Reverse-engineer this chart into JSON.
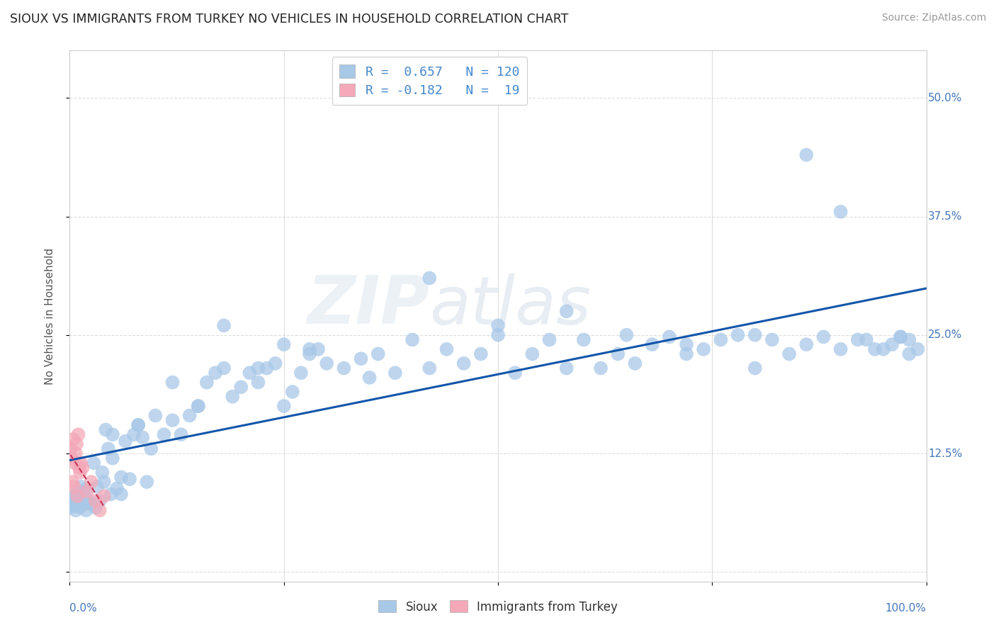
{
  "title": "SIOUX VS IMMIGRANTS FROM TURKEY NO VEHICLES IN HOUSEHOLD CORRELATION CHART",
  "source": "Source: ZipAtlas.com",
  "ylabel": "No Vehicles in Household",
  "ytick_vals": [
    0.0,
    0.125,
    0.25,
    0.375,
    0.5
  ],
  "ytick_labels": [
    "",
    "12.5%",
    "25.0%",
    "37.5%",
    "50.0%"
  ],
  "yright_labels": [
    "",
    "12.5%",
    "25.0%",
    "37.5%",
    "50.0%"
  ],
  "R1": 0.657,
  "N1": 120,
  "R2": -0.182,
  "N2": 19,
  "color_sioux": "#a8c8e8",
  "color_turkey": "#f4a8b8",
  "color_sioux_line": "#1155aa",
  "color_turkey_line": "#cc3355",
  "background_color": "#ffffff",
  "sioux_x": [
    0.001,
    0.002,
    0.003,
    0.004,
    0.005,
    0.006,
    0.007,
    0.008,
    0.009,
    0.01,
    0.011,
    0.012,
    0.013,
    0.015,
    0.016,
    0.017,
    0.018,
    0.019,
    0.02,
    0.022,
    0.025,
    0.028,
    0.03,
    0.032,
    0.035,
    0.038,
    0.04,
    0.042,
    0.045,
    0.048,
    0.05,
    0.055,
    0.06,
    0.065,
    0.07,
    0.075,
    0.08,
    0.085,
    0.09,
    0.095,
    0.1,
    0.11,
    0.12,
    0.13,
    0.14,
    0.15,
    0.16,
    0.17,
    0.18,
    0.19,
    0.2,
    0.21,
    0.22,
    0.23,
    0.24,
    0.25,
    0.26,
    0.27,
    0.28,
    0.29,
    0.3,
    0.32,
    0.34,
    0.36,
    0.38,
    0.4,
    0.42,
    0.44,
    0.46,
    0.48,
    0.5,
    0.52,
    0.54,
    0.56,
    0.58,
    0.6,
    0.62,
    0.64,
    0.66,
    0.68,
    0.7,
    0.72,
    0.74,
    0.76,
    0.78,
    0.8,
    0.82,
    0.84,
    0.86,
    0.88,
    0.9,
    0.92,
    0.94,
    0.96,
    0.97,
    0.98,
    0.99,
    0.05,
    0.08,
    0.12,
    0.18,
    0.22,
    0.28,
    0.35,
    0.42,
    0.5,
    0.58,
    0.65,
    0.72,
    0.8,
    0.86,
    0.9,
    0.93,
    0.95,
    0.97,
    0.98,
    0.025,
    0.06,
    0.15,
    0.25
  ],
  "sioux_y": [
    0.068,
    0.075,
    0.072,
    0.08,
    0.07,
    0.078,
    0.065,
    0.082,
    0.07,
    0.075,
    0.072,
    0.068,
    0.09,
    0.085,
    0.075,
    0.072,
    0.078,
    0.065,
    0.088,
    0.075,
    0.072,
    0.115,
    0.068,
    0.09,
    0.075,
    0.105,
    0.095,
    0.15,
    0.13,
    0.082,
    0.145,
    0.088,
    0.1,
    0.138,
    0.098,
    0.145,
    0.155,
    0.142,
    0.095,
    0.13,
    0.165,
    0.145,
    0.2,
    0.145,
    0.165,
    0.175,
    0.2,
    0.21,
    0.215,
    0.185,
    0.195,
    0.21,
    0.2,
    0.215,
    0.22,
    0.175,
    0.19,
    0.21,
    0.23,
    0.235,
    0.22,
    0.215,
    0.225,
    0.23,
    0.21,
    0.245,
    0.215,
    0.235,
    0.22,
    0.23,
    0.25,
    0.21,
    0.23,
    0.245,
    0.215,
    0.245,
    0.215,
    0.23,
    0.22,
    0.24,
    0.248,
    0.23,
    0.235,
    0.245,
    0.25,
    0.215,
    0.245,
    0.23,
    0.24,
    0.248,
    0.235,
    0.245,
    0.235,
    0.24,
    0.248,
    0.23,
    0.235,
    0.12,
    0.155,
    0.16,
    0.26,
    0.215,
    0.235,
    0.205,
    0.31,
    0.26,
    0.275,
    0.25,
    0.24,
    0.25,
    0.44,
    0.38,
    0.245,
    0.235,
    0.248,
    0.245,
    0.072,
    0.082,
    0.175,
    0.24
  ],
  "turkey_x": [
    0.001,
    0.002,
    0.003,
    0.004,
    0.005,
    0.006,
    0.007,
    0.008,
    0.009,
    0.01,
    0.011,
    0.012,
    0.013,
    0.015,
    0.02,
    0.025,
    0.03,
    0.035,
    0.04
  ],
  "turkey_y": [
    0.13,
    0.12,
    0.095,
    0.14,
    0.09,
    0.115,
    0.125,
    0.135,
    0.08,
    0.145,
    0.11,
    0.105,
    0.115,
    0.11,
    0.085,
    0.095,
    0.075,
    0.065,
    0.08
  ]
}
